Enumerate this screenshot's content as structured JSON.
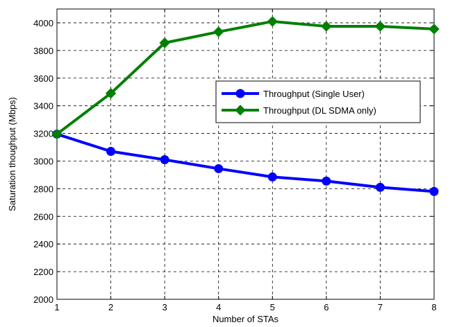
{
  "chart_data": {
    "type": "line",
    "xlabel": "Number of STAs",
    "ylabel": "Saturation thoughput (Mbps)",
    "xlim": [
      1,
      8
    ],
    "ylim": [
      2000,
      4100
    ],
    "xticks": [
      1,
      2,
      3,
      4,
      5,
      6,
      7,
      8
    ],
    "yticks": [
      2000,
      2200,
      2400,
      2600,
      2800,
      3000,
      3200,
      3400,
      3600,
      3800,
      4000
    ],
    "grid": true,
    "legend_position": "center-right",
    "x": [
      1,
      2,
      3,
      4,
      5,
      6,
      7,
      8
    ],
    "series": [
      {
        "name": "Throughput (Single User)",
        "values": [
          3195,
          3070,
          3010,
          2945,
          2885,
          2855,
          2810,
          2780
        ],
        "color": "#0000ff",
        "marker": "circle"
      },
      {
        "name": "Throughput (DL SDMA only)",
        "values": [
          3195,
          3490,
          3855,
          3935,
          4010,
          3975,
          3975,
          3955
        ],
        "color": "#007f00",
        "marker": "diamond"
      }
    ]
  }
}
